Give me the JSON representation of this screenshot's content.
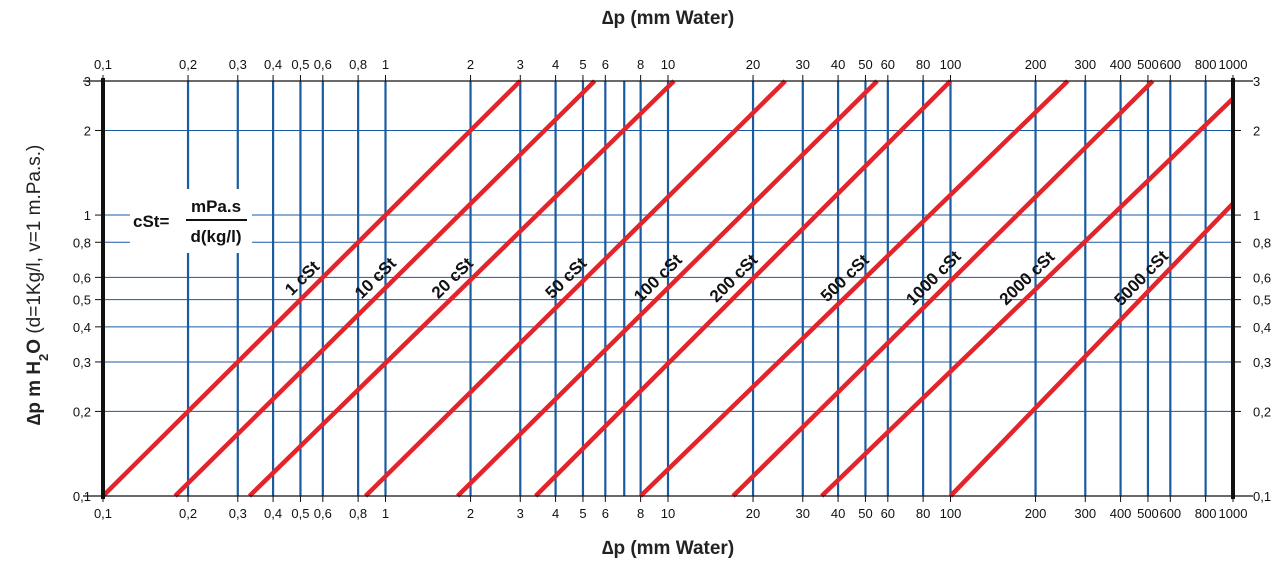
{
  "chart_data": {
    "type": "line",
    "title": "",
    "xlabel_top": "∆p (mm Water)",
    "xlabel_bottom": "∆p (mm Water)",
    "ylabel_bold": "∆p m H",
    "ylabel_sub": "2",
    "ylabel_bold2": "O",
    "ylabel_rest": " (d=1Kg/l, v=1 m.Pa.s.)",
    "xscale": "log",
    "yscale": "log",
    "xlim": [
      0.1,
      1000
    ],
    "ylim": [
      0.1,
      3
    ],
    "x_ticks": [
      0.1,
      0.2,
      0.3,
      0.4,
      0.5,
      0.6,
      0.8,
      1,
      2,
      3,
      4,
      5,
      6,
      8,
      10,
      20,
      30,
      40,
      50,
      60,
      80,
      100,
      200,
      300,
      400,
      500,
      600,
      800,
      1000
    ],
    "x_tick_labels": [
      "0,1",
      "0,2",
      "0,3",
      "0,4",
      "0,5",
      "0,6",
      "0,8",
      "1",
      "2",
      "3",
      "4",
      "5",
      "6",
      "8",
      "10",
      "20",
      "30",
      "40",
      "50",
      "60",
      "80",
      "100",
      "200",
      "300",
      "400",
      "500",
      "600",
      "800",
      "1000"
    ],
    "vertical_gridlines": [
      0.2,
      0.3,
      0.4,
      0.5,
      0.6,
      0.8,
      1,
      2,
      3,
      4,
      5,
      6,
      7,
      8,
      10,
      20,
      30,
      40,
      50,
      60,
      80,
      100,
      200,
      300,
      400,
      500,
      600,
      800
    ],
    "y_ticks": [
      0.1,
      0.2,
      0.3,
      0.4,
      0.5,
      0.6,
      0.8,
      1,
      2,
      3
    ],
    "y_tick_labels": [
      "0,1",
      "0,2",
      "0,3",
      "0,4",
      "0,5",
      "0,6",
      "0,8",
      "1",
      "2",
      "3"
    ],
    "formula": {
      "lhs": "cSt=",
      "numerator": "mPa.s",
      "denominator": "d(kg/l)"
    },
    "series": [
      {
        "name": "1 cSt",
        "points": [
          [
            0.1,
            0.1
          ],
          [
            3,
            3
          ]
        ]
      },
      {
        "name": "10 cSt",
        "points": [
          [
            0.18,
            0.1
          ],
          [
            5.5,
            3
          ]
        ]
      },
      {
        "name": "20 cSt",
        "points": [
          [
            0.33,
            0.1
          ],
          [
            10.5,
            3
          ]
        ]
      },
      {
        "name": "50 cSt",
        "points": [
          [
            0.85,
            0.1
          ],
          [
            26,
            3
          ]
        ]
      },
      {
        "name": "100 cSt",
        "points": [
          [
            1.8,
            0.1
          ],
          [
            55,
            3
          ]
        ]
      },
      {
        "name": "200 cSt",
        "points": [
          [
            3.4,
            0.1
          ],
          [
            100,
            3
          ]
        ]
      },
      {
        "name": "500 cSt",
        "points": [
          [
            8,
            0.1
          ],
          [
            260,
            3
          ]
        ]
      },
      {
        "name": "1000 cSt",
        "points": [
          [
            17,
            0.1
          ],
          [
            520,
            3
          ]
        ]
      },
      {
        "name": "2000 cSt",
        "points": [
          [
            35,
            0.1
          ],
          [
            1000,
            2.6
          ]
        ]
      },
      {
        "name": "5000 cSt",
        "points": [
          [
            100,
            0.1
          ],
          [
            1000,
            1.1
          ]
        ]
      }
    ],
    "colors": {
      "series": "#e3242b",
      "gridline": "#1a5aa0",
      "frame": "#111111"
    }
  }
}
